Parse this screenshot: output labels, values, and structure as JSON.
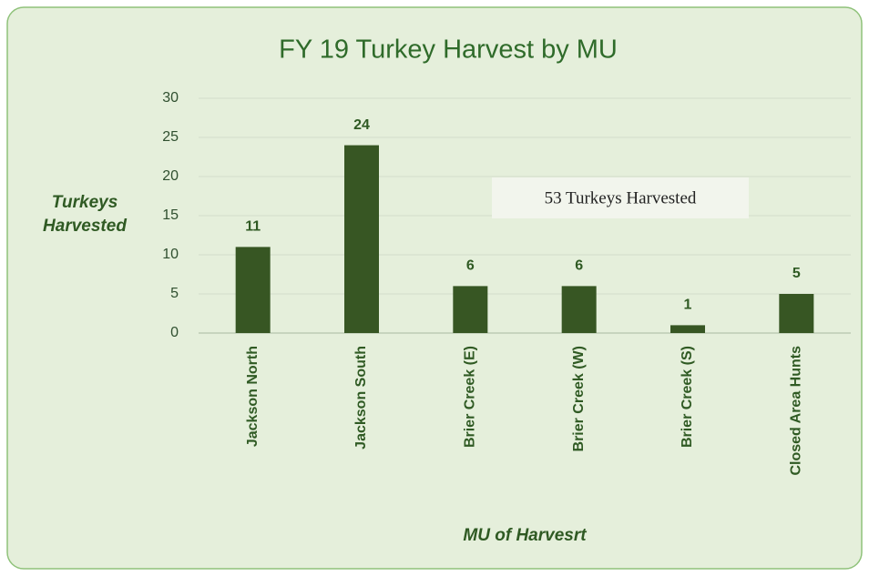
{
  "chart_data": {
    "type": "bar",
    "title": "FY 19 Turkey Harvest by MU",
    "categories": [
      "Jackson North",
      "Jackson South",
      "Brier Creek (E)",
      "Brier Creek (W)",
      "Brier Creek (S)",
      "Closed Area Hunts"
    ],
    "values": [
      11,
      24,
      6,
      6,
      1,
      5
    ],
    "color": "#375623",
    "ylim": [
      0,
      30
    ],
    "yticks": [
      0,
      5,
      10,
      15,
      20,
      25,
      30
    ],
    "grid": true,
    "y_label": "Turkeys Harvested",
    "x_label": "MU of Harvesrt",
    "annotation": "53 Turkeys Harvested"
  }
}
